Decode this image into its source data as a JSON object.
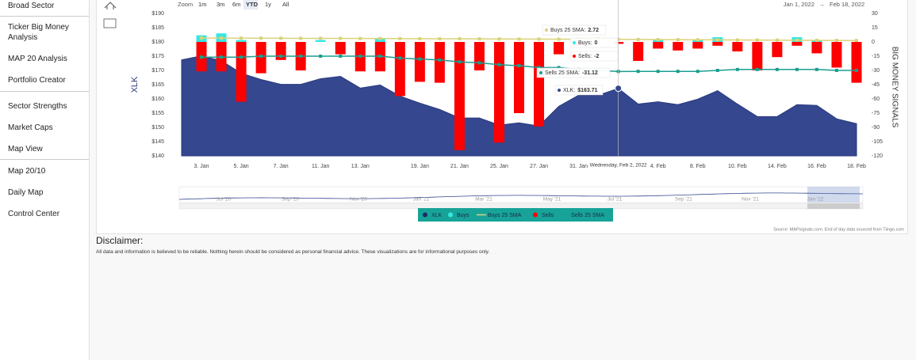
{
  "sidebar": [
    "Broad Sector",
    "Ticker Big Money Analysis",
    "MAP 20 Analysis",
    "Portfolio Creator",
    "Sector Strengths",
    "Market Caps",
    "Map View",
    "Map 20/10",
    "Daily Map",
    "Control Center"
  ],
  "toolbar": {
    "zoom_label": "Zoom",
    "buttons": [
      "1m",
      "3m",
      "6m",
      "YTD",
      "1y",
      "All"
    ],
    "range_from": "Jan 1, 2022",
    "range_separator": "→",
    "range_to": "Feb 18, 2022"
  },
  "chart_data": {
    "type": "combo",
    "y_label": "XLK",
    "y2_label": "BIG MONEY SIGNALS",
    "categories": [
      null,
      "3. Jan",
      null,
      "5. Jan",
      null,
      "7. Jan",
      null,
      "11. Jan",
      null,
      "13. Jan",
      null,
      null,
      "19. Jan",
      null,
      "21. Jan",
      null,
      "25. Jan",
      null,
      "27. Jan",
      null,
      "31. Jan",
      null,
      null,
      null,
      "4. Feb",
      null,
      "8. Feb",
      null,
      "10. Feb",
      null,
      "14. Feb",
      null,
      "16. Feb",
      null,
      "18. Feb"
    ],
    "ylim": [
      140,
      190
    ],
    "yticks": [
      {
        "value": 190,
        "label": "$190"
      },
      {
        "value": 185,
        "label": "$185"
      },
      {
        "value": 180,
        "label": "$180"
      },
      {
        "value": 175,
        "label": "$175"
      },
      {
        "value": 170,
        "label": "$170"
      },
      {
        "value": 165,
        "label": "$165"
      },
      {
        "value": 160,
        "label": "$160"
      },
      {
        "value": 155,
        "label": "$155"
      },
      {
        "value": 150,
        "label": "$150"
      },
      {
        "value": 145,
        "label": "$145"
      },
      {
        "value": 140,
        "label": "$140"
      }
    ],
    "y2lim": [
      -120,
      30
    ],
    "y2ticks": [
      30,
      15,
      0,
      -15,
      -30,
      -45,
      -60,
      -75,
      -90,
      -105,
      -120
    ],
    "grid": false,
    "series": [
      {
        "name": "XLK",
        "type": "area",
        "color": "#34478f",
        "values": [
          173.7,
          175.1,
          173.4,
          169,
          166.8,
          165.1,
          165.1,
          167.1,
          167.9,
          163.8,
          164.9,
          161,
          158.5,
          156.3,
          153.3,
          153.3,
          150.8,
          151.6,
          150.5,
          157.4,
          161.3,
          161.3,
          163.71,
          158.2,
          159,
          158,
          159.9,
          162.9,
          158.2,
          153.8,
          153.8,
          158,
          157.7,
          153,
          151.3
        ]
      },
      {
        "name": "Buys",
        "type": "column",
        "axis": "y2",
        "color": "#33e8e4",
        "values": [
          null,
          7,
          9,
          2,
          0,
          0,
          0,
          2,
          0,
          0,
          4,
          0,
          0,
          0,
          0,
          0,
          0,
          0,
          0,
          0,
          0,
          0,
          0,
          0,
          2,
          0,
          2,
          5,
          0,
          0,
          0,
          5,
          2,
          0,
          0
        ]
      },
      {
        "name": "Buys 25 SMA",
        "type": "line",
        "axis": "y2",
        "color": "#d9d27a",
        "values": [
          null,
          4.1,
          4.1,
          4.0,
          4.0,
          3.9,
          3.8,
          3.8,
          3.7,
          3.6,
          3.6,
          3.5,
          3.4,
          3.3,
          3.3,
          3.2,
          3.1,
          3.0,
          3.0,
          2.9,
          2.8,
          2.8,
          2.72,
          2.6,
          2.5,
          2.4,
          2.3,
          2.2,
          2.1,
          2.0,
          1.9,
          1.8,
          1.7,
          1.6,
          1.5
        ]
      },
      {
        "name": "Sells",
        "type": "column",
        "axis": "y2",
        "color": "#ff0000",
        "values": [
          null,
          -31,
          -31,
          -63,
          -33,
          -19,
          -30,
          0,
          -13,
          -31,
          -31,
          -57,
          -42,
          -43,
          -114,
          -30,
          -106,
          -75,
          -89,
          -13,
          -4,
          0,
          -2,
          -20,
          -7,
          -9,
          -7,
          -4,
          -10,
          -30,
          -16,
          -4,
          -12,
          -27,
          -43
        ]
      },
      {
        "name": "Sells 25 SMA",
        "type": "line",
        "axis": "y2",
        "color": "#1a9e8f",
        "values": [
          null,
          -16,
          -16,
          -16,
          -15,
          -15,
          -15,
          -15,
          -15,
          -15,
          -15,
          -17,
          -18,
          -19,
          -21,
          -22,
          -24,
          -25,
          -27,
          -27,
          -29,
          -30,
          -31.12,
          -31,
          -31,
          -31,
          -31,
          -30,
          -29,
          -29,
          -29,
          -29,
          -29,
          -30,
          -30
        ]
      }
    ],
    "legend_position": "bottom"
  },
  "tooltip": {
    "x": "Wednesday, Feb 2, 2022",
    "items": [
      {
        "label": "Buys 25 SMA:",
        "value": "2.72"
      },
      {
        "label": "Buys:",
        "value": "0"
      },
      {
        "label": "Sells:",
        "value": "-2"
      },
      {
        "label": "Sells 25 SMA:",
        "value": "-31.12"
      },
      {
        "label": "XLK:",
        "value": "$163.71"
      }
    ]
  },
  "navigator": {
    "labels": [
      "Jul '20",
      "Sep '20",
      "Nov '20",
      "Jan '21",
      "Mar '21",
      "May '21",
      "Jul '21",
      "Sep '21",
      "Nov '21",
      "Jan '22"
    ]
  },
  "source": "Source: MAPsignals.com. End of day data sourced from Tiingo.com",
  "disclaimer": {
    "title": "Disclaimer:",
    "text": "All data and information is believed to be reliable. Nothing herein should be considered as personal financial advice. These visualizations are for informational purposes only."
  }
}
